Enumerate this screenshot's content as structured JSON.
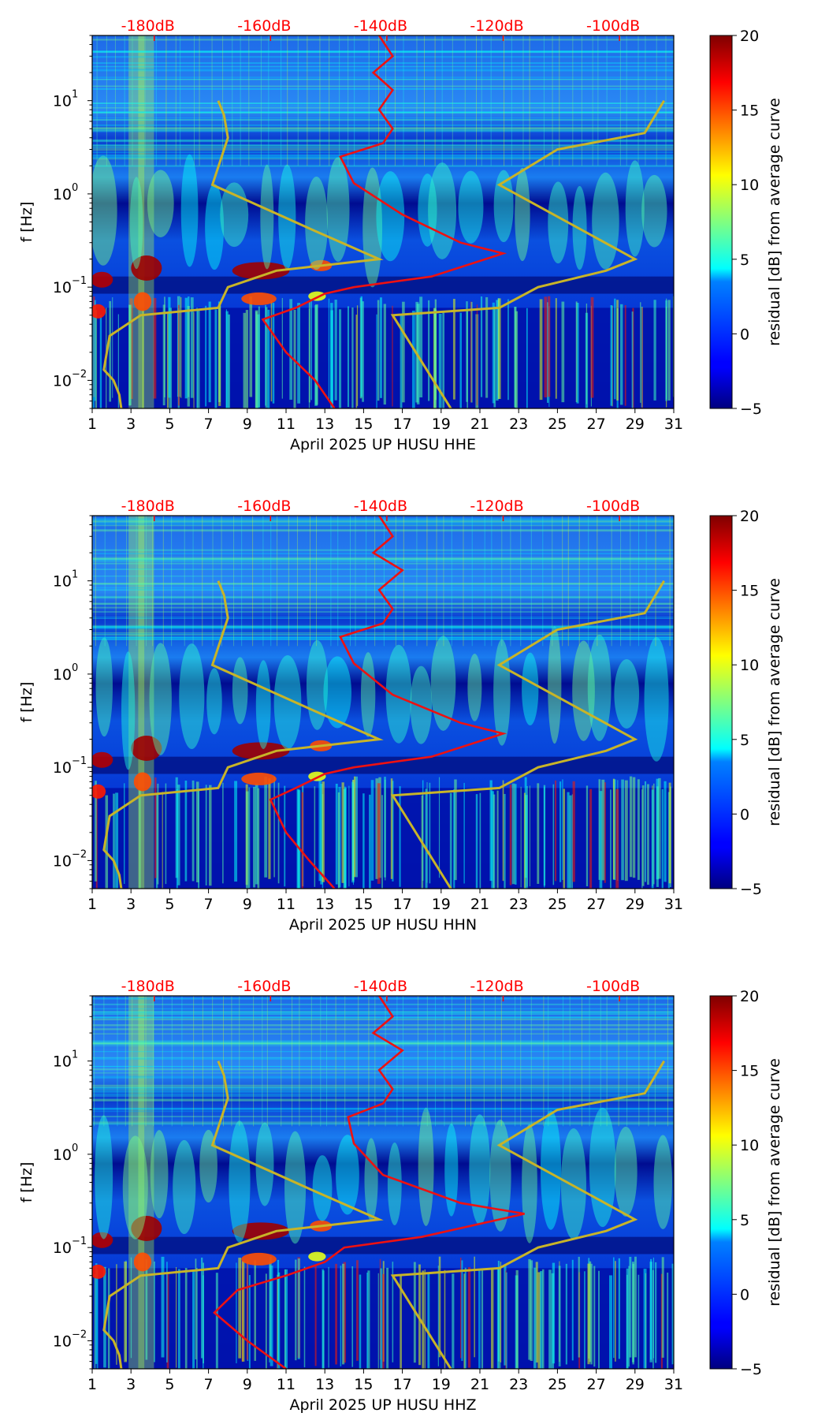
{
  "colors": {
    "noise_model_line": "#c8b428",
    "median_line": "#ee1111",
    "db_label": "#ff0000",
    "background_low": "#00007f"
  },
  "colormap": "jet",
  "chart_data": [
    {
      "type": "heatmap",
      "panel": "HHE",
      "xlabel": "April 2025 UP HUSU  HHE",
      "ylabel": "f [Hz]",
      "x_ticks": [
        "1",
        "3",
        "5",
        "7",
        "9",
        "11",
        "13",
        "15",
        "17",
        "19",
        "21",
        "23",
        "25",
        "27",
        "29",
        "31"
      ],
      "xlim": [
        1,
        31
      ],
      "y_scale": "log",
      "ylim": [
        0.005,
        50
      ],
      "y_ticks": [
        {
          "value": 0.01,
          "label": "10",
          "exp": "−2"
        },
        {
          "value": 0.1,
          "label": "10",
          "exp": "−1"
        },
        {
          "value": 1,
          "label": "10",
          "exp": "0"
        },
        {
          "value": 10,
          "label": "10",
          "exp": "1"
        }
      ],
      "db_scale_labels": [
        "-180dB",
        "-160dB",
        "-140dB",
        "-120dB",
        "-100dB"
      ],
      "db_scale_days": [
        4.2,
        10.2,
        16.2,
        22.2,
        28.2
      ],
      "colorbar": {
        "label": "residual [dB] from average curve",
        "min": -5,
        "max": 20,
        "ticks": [
          "−5",
          "0",
          "5",
          "10",
          "15",
          "20"
        ],
        "tick_values": [
          -5,
          0,
          5,
          10,
          15,
          20
        ]
      },
      "noise_model_low": [
        [
          2.5,
          0.005
        ],
        [
          2.4,
          0.007
        ],
        [
          2.1,
          0.01
        ],
        [
          1.6,
          0.013
        ],
        [
          1.9,
          0.03
        ],
        [
          3.5,
          0.05
        ],
        [
          7.5,
          0.06
        ],
        [
          8.0,
          0.1
        ],
        [
          10.5,
          0.15
        ],
        [
          15.8,
          0.2
        ],
        [
          12.5,
          0.4
        ],
        [
          7.2,
          1.25
        ],
        [
          8.0,
          4
        ],
        [
          7.8,
          7
        ],
        [
          7.5,
          10
        ]
      ],
      "noise_model_high": [
        [
          19.5,
          0.005
        ],
        [
          16.5,
          0.05
        ],
        [
          22.0,
          0.06
        ],
        [
          24.0,
          0.1
        ],
        [
          27.5,
          0.15
        ],
        [
          29.0,
          0.2
        ],
        [
          22.0,
          1.25
        ],
        [
          25.0,
          3
        ],
        [
          29.5,
          4.5
        ],
        [
          30.5,
          10
        ]
      ],
      "median_curve": [
        [
          13.5,
          0.005
        ],
        [
          12.5,
          0.01
        ],
        [
          11.0,
          0.02
        ],
        [
          9.8,
          0.045
        ],
        [
          11.5,
          0.06
        ],
        [
          13.0,
          0.085
        ],
        [
          14.5,
          0.1
        ],
        [
          18.5,
          0.13
        ],
        [
          22.2,
          0.23
        ],
        [
          20.0,
          0.3
        ],
        [
          17.0,
          0.6
        ],
        [
          14.5,
          1.3
        ],
        [
          13.8,
          2.5
        ],
        [
          16.0,
          3.5
        ],
        [
          16.5,
          5
        ],
        [
          15.8,
          8
        ],
        [
          16.5,
          13
        ],
        [
          15.5,
          20
        ],
        [
          16.5,
          30
        ],
        [
          15.8,
          50
        ]
      ]
    },
    {
      "type": "heatmap",
      "panel": "HHN",
      "xlabel": "April 2025 UP HUSU  HHN",
      "ylabel": "f [Hz]",
      "x_ticks": [
        "1",
        "3",
        "5",
        "7",
        "9",
        "11",
        "13",
        "15",
        "17",
        "19",
        "21",
        "23",
        "25",
        "27",
        "29",
        "31"
      ],
      "xlim": [
        1,
        31
      ],
      "y_scale": "log",
      "ylim": [
        0.005,
        50
      ],
      "y_ticks": [
        {
          "value": 0.01,
          "label": "10",
          "exp": "−2"
        },
        {
          "value": 0.1,
          "label": "10",
          "exp": "−1"
        },
        {
          "value": 1,
          "label": "10",
          "exp": "0"
        },
        {
          "value": 10,
          "label": "10",
          "exp": "1"
        }
      ],
      "db_scale_labels": [
        "-180dB",
        "-160dB",
        "-140dB",
        "-120dB",
        "-100dB"
      ],
      "db_scale_days": [
        4.2,
        10.2,
        16.2,
        22.2,
        28.2
      ],
      "colorbar": {
        "label": "residual [dB] from average curve",
        "min": -5,
        "max": 20,
        "ticks": [
          "−5",
          "0",
          "5",
          "10",
          "15",
          "20"
        ],
        "tick_values": [
          -5,
          0,
          5,
          10,
          15,
          20
        ]
      },
      "noise_model_low": [
        [
          2.5,
          0.005
        ],
        [
          2.4,
          0.007
        ],
        [
          2.1,
          0.01
        ],
        [
          1.6,
          0.013
        ],
        [
          1.9,
          0.03
        ],
        [
          3.5,
          0.05
        ],
        [
          7.5,
          0.06
        ],
        [
          8.0,
          0.1
        ],
        [
          10.5,
          0.15
        ],
        [
          15.8,
          0.2
        ],
        [
          12.5,
          0.4
        ],
        [
          7.2,
          1.25
        ],
        [
          8.0,
          4
        ],
        [
          7.8,
          7
        ],
        [
          7.5,
          10
        ]
      ],
      "noise_model_high": [
        [
          19.5,
          0.005
        ],
        [
          16.5,
          0.05
        ],
        [
          22.0,
          0.06
        ],
        [
          24.0,
          0.1
        ],
        [
          27.5,
          0.15
        ],
        [
          29.0,
          0.2
        ],
        [
          22.0,
          1.25
        ],
        [
          25.0,
          3
        ],
        [
          29.5,
          4.5
        ],
        [
          30.5,
          10
        ]
      ],
      "median_curve": [
        [
          13.5,
          0.005
        ],
        [
          12.2,
          0.01
        ],
        [
          11.0,
          0.02
        ],
        [
          10.2,
          0.045
        ],
        [
          11.5,
          0.06
        ],
        [
          13.0,
          0.085
        ],
        [
          14.5,
          0.1
        ],
        [
          18.5,
          0.13
        ],
        [
          22.2,
          0.23
        ],
        [
          20.0,
          0.3
        ],
        [
          16.5,
          0.6
        ],
        [
          14.5,
          1.3
        ],
        [
          13.8,
          2.5
        ],
        [
          16.0,
          3.5
        ],
        [
          16.5,
          5
        ],
        [
          15.8,
          8
        ],
        [
          17.0,
          13
        ],
        [
          15.5,
          20
        ],
        [
          16.5,
          30
        ],
        [
          15.8,
          50
        ]
      ]
    },
    {
      "type": "heatmap",
      "panel": "HHZ",
      "xlabel": "April 2025 UP HUSU  HHZ",
      "ylabel": "f [Hz]",
      "x_ticks": [
        "1",
        "3",
        "5",
        "7",
        "9",
        "11",
        "13",
        "15",
        "17",
        "19",
        "21",
        "23",
        "25",
        "27",
        "29",
        "31"
      ],
      "xlim": [
        1,
        31
      ],
      "y_scale": "log",
      "ylim": [
        0.005,
        50
      ],
      "y_ticks": [
        {
          "value": 0.01,
          "label": "10",
          "exp": "−2"
        },
        {
          "value": 0.1,
          "label": "10",
          "exp": "−1"
        },
        {
          "value": 1,
          "label": "10",
          "exp": "0"
        },
        {
          "value": 10,
          "label": "10",
          "exp": "1"
        }
      ],
      "db_scale_labels": [
        "-180dB",
        "-160dB",
        "-140dB",
        "-120dB",
        "-100dB"
      ],
      "db_scale_days": [
        4.2,
        10.2,
        16.2,
        22.2,
        28.2
      ],
      "colorbar": {
        "label": "residual [dB] from average curve",
        "min": -5,
        "max": 20,
        "ticks": [
          "−5",
          "0",
          "5",
          "10",
          "15",
          "20"
        ],
        "tick_values": [
          -5,
          0,
          5,
          10,
          15,
          20
        ]
      },
      "noise_model_low": [
        [
          2.5,
          0.005
        ],
        [
          2.4,
          0.007
        ],
        [
          2.1,
          0.01
        ],
        [
          1.6,
          0.013
        ],
        [
          1.9,
          0.03
        ],
        [
          3.5,
          0.05
        ],
        [
          7.5,
          0.06
        ],
        [
          8.0,
          0.1
        ],
        [
          10.5,
          0.15
        ],
        [
          15.8,
          0.2
        ],
        [
          12.5,
          0.4
        ],
        [
          7.2,
          1.25
        ],
        [
          8.0,
          4
        ],
        [
          7.8,
          7
        ],
        [
          7.5,
          10
        ]
      ],
      "noise_model_high": [
        [
          19.5,
          0.005
        ],
        [
          16.5,
          0.05
        ],
        [
          22.0,
          0.06
        ],
        [
          24.0,
          0.1
        ],
        [
          27.5,
          0.15
        ],
        [
          29.0,
          0.2
        ],
        [
          22.0,
          1.25
        ],
        [
          25.0,
          3
        ],
        [
          29.5,
          4.5
        ],
        [
          30.5,
          10
        ]
      ],
      "median_curve": [
        [
          11.0,
          0.005
        ],
        [
          9.0,
          0.01
        ],
        [
          7.3,
          0.02
        ],
        [
          8.5,
          0.035
        ],
        [
          11.0,
          0.05
        ],
        [
          13.0,
          0.07
        ],
        [
          14.0,
          0.1
        ],
        [
          18.0,
          0.13
        ],
        [
          23.3,
          0.23
        ],
        [
          20.0,
          0.3
        ],
        [
          16.0,
          0.6
        ],
        [
          14.5,
          1.3
        ],
        [
          14.2,
          2.5
        ],
        [
          16.0,
          3.5
        ],
        [
          16.5,
          5
        ],
        [
          15.8,
          8
        ],
        [
          17.0,
          13
        ],
        [
          15.5,
          20
        ],
        [
          16.5,
          30
        ],
        [
          15.8,
          50
        ]
      ]
    }
  ]
}
